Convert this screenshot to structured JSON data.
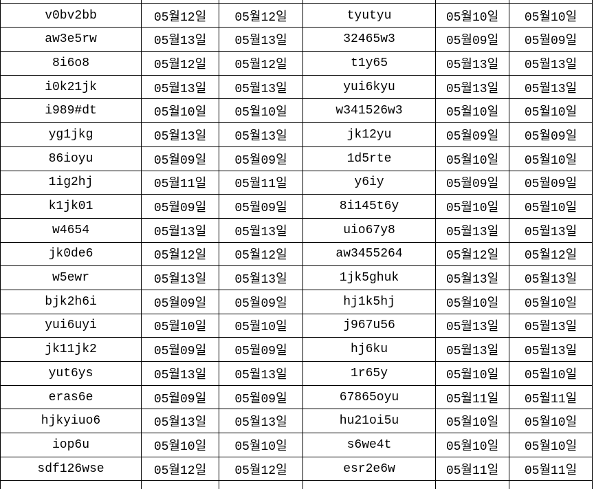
{
  "table": {
    "rows": [
      [
        "v0bv2bb",
        "05월12일",
        "05월12일",
        "tyutyu",
        "05월10일",
        "05월10일"
      ],
      [
        "aw3e5rw",
        "05월13일",
        "05월13일",
        "32465w3",
        "05월09일",
        "05월09일"
      ],
      [
        "8i6o8",
        "05월12일",
        "05월12일",
        "t1y65",
        "05월13일",
        "05월13일"
      ],
      [
        "i0k21jk",
        "05월13일",
        "05월13일",
        "yui6kyu",
        "05월13일",
        "05월13일"
      ],
      [
        "i989#dt",
        "05월10일",
        "05월10일",
        "w341526w3",
        "05월10일",
        "05월10일"
      ],
      [
        "yg1jkg",
        "05월13일",
        "05월13일",
        "jk12yu",
        "05월09일",
        "05월09일"
      ],
      [
        "86ioyu",
        "05월09일",
        "05월09일",
        "1d5rte",
        "05월10일",
        "05월10일"
      ],
      [
        "1ig2hj",
        "05월11일",
        "05월11일",
        "y6iy",
        "05월09일",
        "05월09일"
      ],
      [
        "k1jk01",
        "05월09일",
        "05월09일",
        "8i145t6y",
        "05월10일",
        "05월10일"
      ],
      [
        "w4654",
        "05월13일",
        "05월13일",
        "uio67y8",
        "05월13일",
        "05월13일"
      ],
      [
        "jk0de6",
        "05월12일",
        "05월12일",
        "aw3455264",
        "05월12일",
        "05월12일"
      ],
      [
        "w5ewr",
        "05월13일",
        "05월13일",
        "1jk5ghuk",
        "05월13일",
        "05월13일"
      ],
      [
        "bjk2h6i",
        "05월09일",
        "05월09일",
        "hj1k5hj",
        "05월10일",
        "05월10일"
      ],
      [
        "yui6uyi",
        "05월10일",
        "05월10일",
        "j967u56",
        "05월13일",
        "05월13일"
      ],
      [
        "jk11jk2",
        "05월09일",
        "05월09일",
        "hj6ku",
        "05월13일",
        "05월13일"
      ],
      [
        "yut6ys",
        "05월13일",
        "05월13일",
        "1r65y",
        "05월10일",
        "05월10일"
      ],
      [
        "eras6e",
        "05월09일",
        "05월09일",
        "67865oyu",
        "05월11일",
        "05월11일"
      ],
      [
        "hjkyiuo6",
        "05월13일",
        "05월13일",
        "hu21oi5u",
        "05월10일",
        "05월10일"
      ],
      [
        "iop6u",
        "05월10일",
        "05월10일",
        "s6we4t",
        "05월10일",
        "05월10일"
      ],
      [
        "sdf126wse",
        "05월12일",
        "05월12일",
        "esr2e6w",
        "05월11일",
        "05월11일"
      ]
    ]
  },
  "colors": {
    "background": "#ffffff",
    "grid_line": "#000000",
    "text": "#000000"
  }
}
